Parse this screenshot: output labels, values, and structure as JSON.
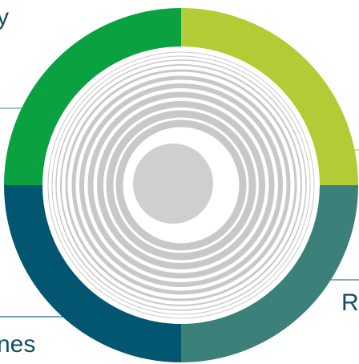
{
  "labels": {
    "top_left": "y",
    "bottom_right": "Re",
    "bottom_left": "nes"
  },
  "colors": {
    "top_left_segment": "#0aa140",
    "top_right_segment": "#b2cc35",
    "bottom_left_segment": "#03566f",
    "bottom_right_segment": "#3b8079",
    "ring_lines": "#c8c8c8",
    "center_disc": "#cfcfcf",
    "leader_lines": "#5fa58f",
    "label_text": "#0f4e63"
  }
}
